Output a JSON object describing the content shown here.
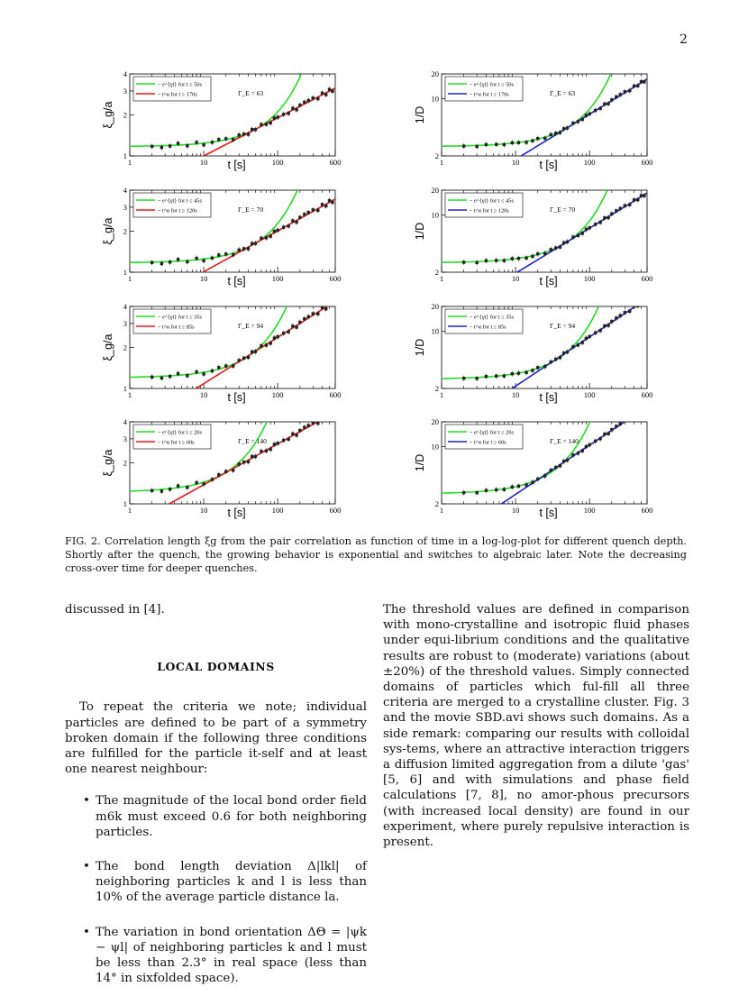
{
  "page_number": "2",
  "chart_data": [
    {
      "type": "line",
      "row": 0,
      "col": 0,
      "ylabel": "ξ_g/a",
      "xlabel": "t [s]",
      "xlim": [
        1,
        600
      ],
      "ylim": [
        1,
        4
      ],
      "x_ticks": [
        "1",
        "10",
        "100",
        "600"
      ],
      "y_ticks": [
        "1",
        "2",
        "3",
        "4"
      ],
      "gamma": "Γ_E = 63",
      "series": [
        {
          "name": "~ e^{γt} for t ≤ 50s",
          "color": "#22dd22"
        },
        {
          "name": "~ t^α for t ≥ 170s",
          "color": "#e81919"
        }
      ],
      "crossover": 48,
      "green_tau": 170,
      "alpha": 0.28,
      "y0": 1.17,
      "scatter_x": [
        2,
        2.7,
        3.5,
        4.5,
        6,
        8,
        10,
        13,
        16,
        20,
        25,
        30,
        35,
        40,
        45,
        50,
        60,
        70,
        80,
        90,
        100,
        120,
        140,
        160,
        180,
        200,
        230,
        260,
        300,
        350,
        400,
        450,
        500,
        550
      ]
    },
    {
      "type": "line",
      "row": 0,
      "col": 1,
      "ylabel": "1/D",
      "xlabel": "t [s]",
      "xlim": [
        1,
        600
      ],
      "ylim": [
        2,
        20
      ],
      "x_ticks": [
        "1",
        "10",
        "100",
        "600"
      ],
      "y_ticks": [
        "2",
        "10",
        "20"
      ],
      "gamma": "Γ_E = 63",
      "series": [
        {
          "name": "~ e^{γt} for t ≤ 50s",
          "color": "#22dd22"
        },
        {
          "name": "~ t^α for t ≥ 170s",
          "color": "#2222cc"
        }
      ],
      "crossover": 48,
      "green_tau": 95,
      "alpha": 0.55,
      "y0": 2.6,
      "scatter_x": [
        2,
        3,
        4,
        5.5,
        7,
        9,
        11,
        14,
        17,
        20,
        25,
        30,
        35,
        40,
        45,
        50,
        60,
        70,
        80,
        90,
        100,
        120,
        140,
        160,
        180,
        200,
        230,
        260,
        300,
        350,
        400,
        450,
        500,
        550
      ]
    },
    {
      "type": "line",
      "row": 1,
      "col": 0,
      "ylabel": "ξ_g/a",
      "xlabel": "t [s]",
      "xlim": [
        1,
        600
      ],
      "ylim": [
        1,
        4
      ],
      "x_ticks": [
        "1",
        "10",
        "100",
        "600"
      ],
      "y_ticks": [
        "1",
        "2",
        "3",
        "4"
      ],
      "gamma": "Γ_E = 70",
      "series": [
        {
          "name": "~ e^{γt} for t ≤ 45s",
          "color": "#22dd22"
        },
        {
          "name": "~ t^α for t ≥ 120s",
          "color": "#e81919"
        }
      ],
      "crossover": 40,
      "green_tau": 150,
      "alpha": 0.3,
      "y0": 1.17,
      "scatter_x": [
        2,
        2.7,
        3.5,
        4.5,
        6,
        8,
        10,
        13,
        16,
        20,
        25,
        30,
        35,
        40,
        45,
        50,
        60,
        70,
        80,
        90,
        100,
        120,
        140,
        160,
        180,
        200,
        230,
        260,
        300,
        350,
        400,
        450,
        500,
        550
      ]
    },
    {
      "type": "line",
      "row": 1,
      "col": 1,
      "ylabel": "1/D",
      "xlabel": "t [s]",
      "xlim": [
        1,
        600
      ],
      "ylim": [
        2,
        20
      ],
      "x_ticks": [
        "1",
        "10",
        "100",
        "600"
      ],
      "y_ticks": [
        "2",
        "10",
        "20"
      ],
      "gamma": "Γ_E = 70",
      "series": [
        {
          "name": "~ e^{γt} for t ≤ 45s",
          "color": "#22dd22"
        },
        {
          "name": "~ t^α for t ≥ 120s",
          "color": "#2222cc"
        }
      ],
      "crossover": 40,
      "green_tau": 85,
      "alpha": 0.55,
      "y0": 2.6,
      "scatter_x": [
        2,
        3,
        4,
        5.5,
        7,
        9,
        11,
        14,
        17,
        20,
        25,
        30,
        35,
        40,
        45,
        50,
        60,
        70,
        80,
        90,
        100,
        120,
        140,
        160,
        180,
        200,
        230,
        260,
        300,
        350,
        400,
        450,
        500,
        550
      ]
    },
    {
      "type": "line",
      "row": 2,
      "col": 0,
      "ylabel": "ξ_g/a",
      "xlabel": "t [s]",
      "xlim": [
        1,
        600
      ],
      "ylim": [
        1,
        4
      ],
      "x_ticks": [
        "1",
        "10",
        "100",
        "600"
      ],
      "y_ticks": [
        "1",
        "2",
        "3",
        "4"
      ],
      "gamma": "Γ_E = 94",
      "series": [
        {
          "name": "~ e^{γt} for t ≤ 35s",
          "color": "#22dd22"
        },
        {
          "name": "~ t^α for t ≥ 85s",
          "color": "#e81919"
        }
      ],
      "crossover": 30,
      "green_tau": 110,
      "alpha": 0.34,
      "y0": 1.2,
      "scatter_x": [
        2,
        2.7,
        3.5,
        4.5,
        6,
        8,
        10,
        13,
        16,
        20,
        25,
        30,
        35,
        40,
        45,
        50,
        60,
        70,
        80,
        90,
        100,
        120,
        140,
        160,
        180,
        200,
        230,
        260,
        300,
        350,
        400,
        450,
        500,
        550
      ]
    },
    {
      "type": "line",
      "row": 2,
      "col": 1,
      "ylabel": "1/D",
      "xlabel": "t [s]",
      "xlim": [
        1,
        600
      ],
      "ylim": [
        2,
        20
      ],
      "x_ticks": [
        "1",
        "10",
        "100",
        "600"
      ],
      "y_ticks": [
        "2",
        "10",
        "20"
      ],
      "gamma": "Γ_E = 94",
      "series": [
        {
          "name": "~ e^{γt} for t ≤ 35s",
          "color": "#22dd22"
        },
        {
          "name": "~ t^α for t ≥ 85s",
          "color": "#2222cc"
        }
      ],
      "crossover": 30,
      "green_tau": 65,
      "alpha": 0.6,
      "y0": 2.6,
      "scatter_x": [
        2,
        3,
        4,
        5.5,
        7,
        9,
        11,
        14,
        17,
        20,
        25,
        30,
        35,
        40,
        45,
        50,
        60,
        70,
        80,
        90,
        100,
        120,
        140,
        160,
        180,
        200,
        230,
        260,
        300,
        350,
        400,
        450,
        500,
        550
      ]
    },
    {
      "type": "line",
      "row": 3,
      "col": 0,
      "ylabel": "ξ_g/a",
      "xlabel": "t [s]",
      "xlim": [
        1,
        600
      ],
      "ylim": [
        1,
        4
      ],
      "x_ticks": [
        "1",
        "10",
        "100",
        "600"
      ],
      "y_ticks": [
        "1",
        "2",
        "3",
        "4"
      ],
      "gamma": "Γ_E = 140",
      "series": [
        {
          "name": "~ e^{γt} for t ≤ 20s",
          "color": "#22dd22"
        },
        {
          "name": "~ t^α for t ≥ 60s",
          "color": "#e81919"
        }
      ],
      "crossover": 18,
      "green_tau": 60,
      "alpha": 0.3,
      "y0": 1.22,
      "scatter_x": [
        2,
        2.7,
        3.5,
        4.5,
        6,
        8,
        10,
        13,
        16,
        20,
        25,
        30,
        35,
        40,
        45,
        50,
        60,
        70,
        80,
        90,
        100,
        120,
        140,
        160,
        180,
        200,
        230,
        260,
        300,
        350,
        400,
        450,
        500,
        550
      ]
    },
    {
      "type": "line",
      "row": 3,
      "col": 1,
      "ylabel": "1/D",
      "xlabel": "t [s]",
      "xlim": [
        1,
        600
      ],
      "ylim": [
        2,
        20
      ],
      "x_ticks": [
        "1",
        "10",
        "100",
        "600"
      ],
      "y_ticks": [
        "2",
        "10",
        "20"
      ],
      "gamma": "Γ_E = 140",
      "series": [
        {
          "name": "~ e^{γt} for t ≤ 20s",
          "color": "#22dd22"
        },
        {
          "name": "~ t^α for t ≥ 60s",
          "color": "#2222cc"
        }
      ],
      "crossover": 20,
      "green_tau": 50,
      "alpha": 0.6,
      "y0": 2.65,
      "scatter_x": [
        2,
        3,
        4,
        5.5,
        7,
        9,
        11,
        14,
        17,
        20,
        25,
        30,
        35,
        40,
        45,
        50,
        60,
        70,
        80,
        90,
        100,
        120,
        140,
        160,
        180,
        200,
        230,
        260,
        300,
        350,
        400,
        450,
        500,
        550
      ]
    }
  ],
  "caption": {
    "label": "FIG. 2.",
    "text": "Correlation length ξg from the pair correlation as function of time in a log-log-plot for different quench depth. Shortly after the quench, the growing behavior is exponential and switches to algebraic later. Note the decreasing cross-over time for deeper quenches."
  },
  "left_column": {
    "intro": "discussed in [4].",
    "heading": "LOCAL DOMAINS",
    "paragraph": "To repeat the criteria we note; individual particles are defined to be part of a symmetry broken domain if the following three conditions are fulfilled for the particle it-self and at least one nearest neighbour:",
    "criteria": [
      {
        "bullet": "•",
        "text": "The magnitude of the local bond order field m6k must exceed 0.6 for both neighboring particles."
      },
      {
        "bullet": "•",
        "text": "The bond length deviation Δ|lkl| of neighboring particles k and l is less than 10% of the average particle distance la."
      },
      {
        "bullet": "•",
        "text": "The variation in bond orientation ΔΘ = |ψk − ψl| of neighboring particles k and l must be less than 2.3° in real space (less than 14° in sixfolded space)."
      }
    ]
  },
  "right_column": {
    "paragraph1": "The threshold values are defined in comparison with mono-crystalline and isotropic fluid phases under equi-librium conditions and the qualitative results are robust to (moderate) variations (about ±20%) of the threshold values. Simply connected domains of particles which ful-fill all three criteria are merged to a crystalline cluster. Fig. 3 and the movie SBD.avi shows such domains. As a side remark: comparing our results with colloidal sys-tems, where an attractive interaction triggers a diffusion limited aggregation from a dilute 'gas' [5, 6] and with simulations and phase field calculations [7, 8], no amor-phous precursors (with increased local density) are found in our experiment, where purely repulsive interaction is present."
  }
}
